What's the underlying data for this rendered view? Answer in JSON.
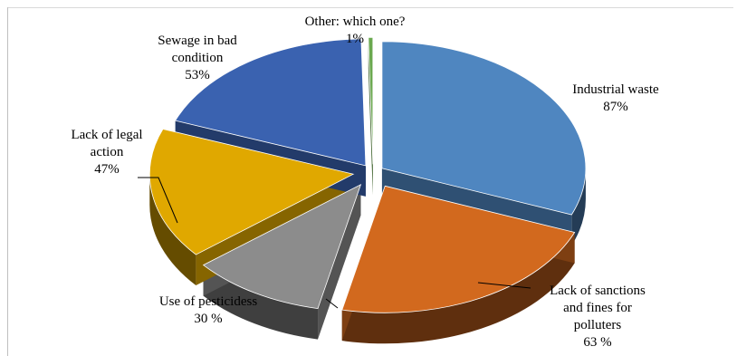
{
  "chart_data": {
    "type": "pie",
    "title": "",
    "categories": [
      "Industrial waste",
      "Lack of sanctions and fines for polluters",
      "Use of pesticidess",
      "Lack of legal action",
      "Sewage in bad condition",
      "Other: which one?"
    ],
    "values": [
      87,
      63,
      30,
      47,
      53,
      1
    ],
    "labels": [
      {
        "lines": [
          "Industrial waste"
        ],
        "value": "87%"
      },
      {
        "lines": [
          "Lack of sanctions",
          "and fines for",
          "polluters"
        ],
        "value": "63 %"
      },
      {
        "lines": [
          "Use of pesticidess"
        ],
        "value": "30 %"
      },
      {
        "lines": [
          "Lack of legal",
          "action"
        ],
        "value": "47%"
      },
      {
        "lines": [
          "Sewage in bad",
          "condition"
        ],
        "value": "53%"
      },
      {
        "lines": [
          "Other: which one?"
        ],
        "value": "1%"
      }
    ],
    "colors": [
      "#4f86c0",
      "#d2691e",
      "#8c8c8c",
      "#e0a800",
      "#3a62b0",
      "#6aa84f"
    ],
    "style": "3d-exploded",
    "legend": "none"
  }
}
